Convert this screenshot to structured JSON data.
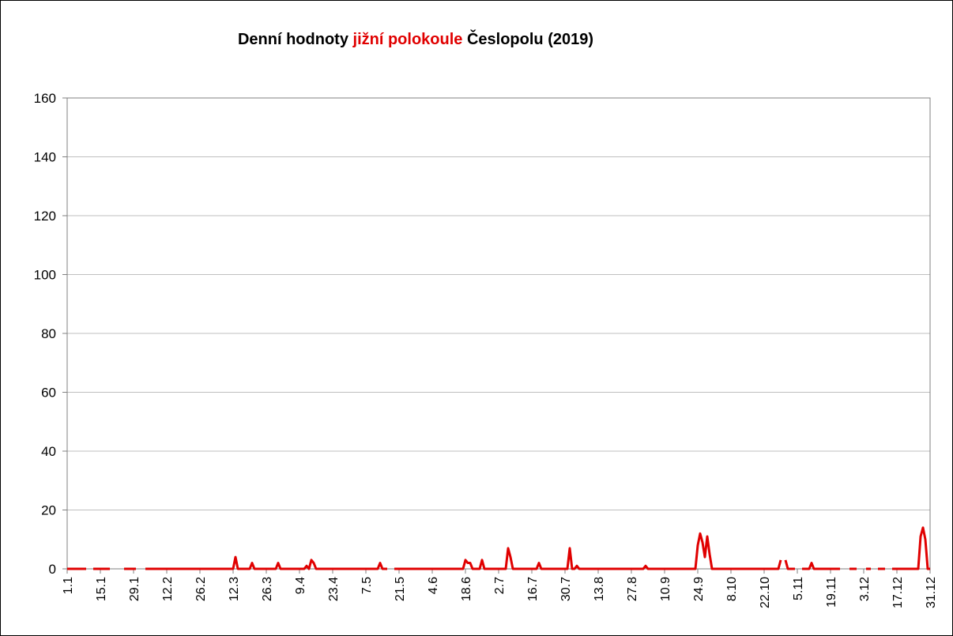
{
  "chart_data": {
    "type": "line",
    "title": {
      "pre": "Denní hodnoty ",
      "highlight": "jižní polokoule",
      "post": " Česlopolu (2019)"
    },
    "xlabel": "",
    "ylabel": "",
    "ylim": [
      0,
      160
    ],
    "yticks": [
      0,
      20,
      40,
      60,
      80,
      100,
      120,
      140,
      160
    ],
    "grid": true,
    "legend": "none",
    "colors": {
      "series": "#e00000",
      "grid": "#bfbfbf",
      "axis": "#808080"
    },
    "x_tick_labels": [
      "1.1",
      "15.1",
      "29.1",
      "12.2",
      "26.2",
      "12.3",
      "26.3",
      "9.4",
      "23.4",
      "7.5",
      "21.5",
      "4.6",
      "18.6",
      "2.7",
      "16.7",
      "30.7",
      "13.8",
      "27.8",
      "10.9",
      "24.9",
      "8.10",
      "22.10",
      "5.11",
      "19.11",
      "3.12",
      "17.12",
      "31.12"
    ],
    "series": [
      {
        "color": "#e00000",
        "peaks": [
          {
            "date": "13.3",
            "value": 4
          },
          {
            "date": "20.3",
            "value": 2
          },
          {
            "date": "31.3",
            "value": 2
          },
          {
            "date": "12.4",
            "value": 1
          },
          {
            "date": "14.4",
            "value": 3
          },
          {
            "date": "15.4",
            "value": 2
          },
          {
            "date": "13.5",
            "value": 2
          },
          {
            "date": "18.6",
            "value": 3
          },
          {
            "date": "19.6",
            "value": 2
          },
          {
            "date": "20.6",
            "value": 2
          },
          {
            "date": "25.6",
            "value": 3
          },
          {
            "date": "6.7",
            "value": 7
          },
          {
            "date": "7.7",
            "value": 4
          },
          {
            "date": "19.7",
            "value": 2
          },
          {
            "date": "1.8",
            "value": 7
          },
          {
            "date": "4.8",
            "value": 1
          },
          {
            "date": "2.9",
            "value": 1
          },
          {
            "date": "24.9",
            "value": 8
          },
          {
            "date": "25.9",
            "value": 12
          },
          {
            "date": "26.9",
            "value": 9
          },
          {
            "date": "27.9",
            "value": 4
          },
          {
            "date": "28.9",
            "value": 11
          },
          {
            "date": "29.9",
            "value": 5
          },
          {
            "date": "29.10",
            "value": 3
          },
          {
            "date": "30.10",
            "value": 9
          },
          {
            "date": "31.10",
            "value": 3
          },
          {
            "date": "11.11",
            "value": 2
          },
          {
            "date": "27.12",
            "value": 11
          },
          {
            "date": "28.12",
            "value": 14
          },
          {
            "date": "29.12",
            "value": 10
          }
        ],
        "missing_ranges": [
          [
            "10.1",
            "11.1"
          ],
          [
            "20.1",
            "24.1"
          ],
          [
            "31.1",
            "2.2"
          ],
          [
            "17.5",
            "18.5"
          ],
          [
            "30.10",
            "30.10"
          ],
          [
            "5.11",
            "6.11"
          ],
          [
            "24.11",
            "26.11"
          ],
          [
            "1.12",
            "3.12"
          ],
          [
            "7.12",
            "8.12"
          ],
          [
            "13.12",
            "14.12"
          ]
        ]
      }
    ]
  }
}
